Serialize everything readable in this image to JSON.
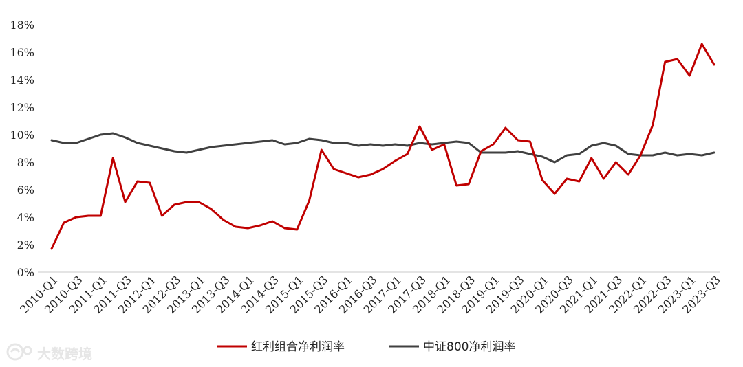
{
  "chart_data": {
    "type": "line",
    "title": "",
    "xlabel": "",
    "ylabel": "",
    "ylim": [
      0,
      18
    ],
    "ytick_step": 2,
    "y_unit": "%",
    "grid": false,
    "legend_position": "bottom-center",
    "categories": [
      "2010-Q1",
      "2010-Q2",
      "2010-Q3",
      "2010-Q4",
      "2011-Q1",
      "2011-Q2",
      "2011-Q3",
      "2011-Q4",
      "2012-Q1",
      "2012-Q2",
      "2012-Q3",
      "2012-Q4",
      "2013-Q1",
      "2013-Q2",
      "2013-Q3",
      "2013-Q4",
      "2014-Q1",
      "2014-Q2",
      "2014-Q3",
      "2014-Q4",
      "2015-Q1",
      "2015-Q2",
      "2015-Q3",
      "2015-Q4",
      "2016-Q1",
      "2016-Q2",
      "2016-Q3",
      "2016-Q4",
      "2017-Q1",
      "2017-Q2",
      "2017-Q3",
      "2017-Q4",
      "2018-Q1",
      "2018-Q2",
      "2018-Q3",
      "2018-Q4",
      "2019-Q1",
      "2019-Q2",
      "2019-Q3",
      "2019-Q4",
      "2020-Q1",
      "2020-Q2",
      "2020-Q3",
      "2020-Q4",
      "2021-Q1",
      "2021-Q2",
      "2021-Q3",
      "2021-Q4",
      "2022-Q1",
      "2022-Q2",
      "2022-Q3",
      "2022-Q4",
      "2023-Q1",
      "2023-Q2",
      "2023-Q3"
    ],
    "tick_labels": [
      "2010-Q1",
      "2010-Q3",
      "2011-Q1",
      "2011-Q3",
      "2012-Q1",
      "2012-Q3",
      "2013-Q1",
      "2013-Q3",
      "2014-Q1",
      "2014-Q3",
      "2015-Q1",
      "2015-Q3",
      "2016-Q1",
      "2016-Q3",
      "2017-Q1",
      "2017-Q3",
      "2018-Q1",
      "2018-Q3",
      "2019-Q1",
      "2019-Q3",
      "2020-Q1",
      "2020-Q3",
      "2021-Q1",
      "2021-Q3",
      "2022-Q1",
      "2022-Q3",
      "2023-Q1",
      "2023-Q3"
    ],
    "series": [
      {
        "name": "红利组合净利润率",
        "color": "#C00000",
        "values": [
          1.7,
          3.6,
          4.0,
          4.1,
          4.1,
          8.3,
          5.1,
          6.6,
          6.5,
          4.1,
          4.9,
          5.1,
          5.1,
          4.6,
          3.8,
          3.3,
          3.2,
          3.4,
          3.7,
          3.2,
          3.1,
          5.2,
          8.9,
          7.5,
          7.2,
          6.9,
          7.1,
          7.5,
          8.1,
          8.6,
          10.6,
          8.9,
          9.3,
          6.3,
          6.4,
          8.8,
          9.3,
          10.5,
          9.6,
          9.5,
          6.7,
          5.7,
          6.8,
          6.6,
          8.3,
          6.8,
          8.0,
          7.1,
          8.5,
          10.7,
          15.3,
          15.5,
          14.3,
          16.6,
          15.1
        ]
      },
      {
        "name": "中证800净利润率",
        "color": "#404040",
        "values": [
          9.6,
          9.4,
          9.4,
          9.7,
          10.0,
          10.1,
          9.8,
          9.4,
          9.2,
          9.0,
          8.8,
          8.7,
          8.9,
          9.1,
          9.2,
          9.3,
          9.4,
          9.5,
          9.6,
          9.3,
          9.4,
          9.7,
          9.6,
          9.4,
          9.4,
          9.2,
          9.3,
          9.2,
          9.3,
          9.2,
          9.4,
          9.3,
          9.4,
          9.5,
          9.4,
          8.7,
          8.7,
          8.7,
          8.8,
          8.6,
          8.4,
          8.0,
          8.5,
          8.6,
          9.2,
          9.4,
          9.2,
          8.6,
          8.5,
          8.5,
          8.7,
          8.5,
          8.6,
          8.5,
          8.7
        ]
      }
    ]
  },
  "watermark": {
    "text": "大数跨境",
    "icon": "logo-icon"
  }
}
